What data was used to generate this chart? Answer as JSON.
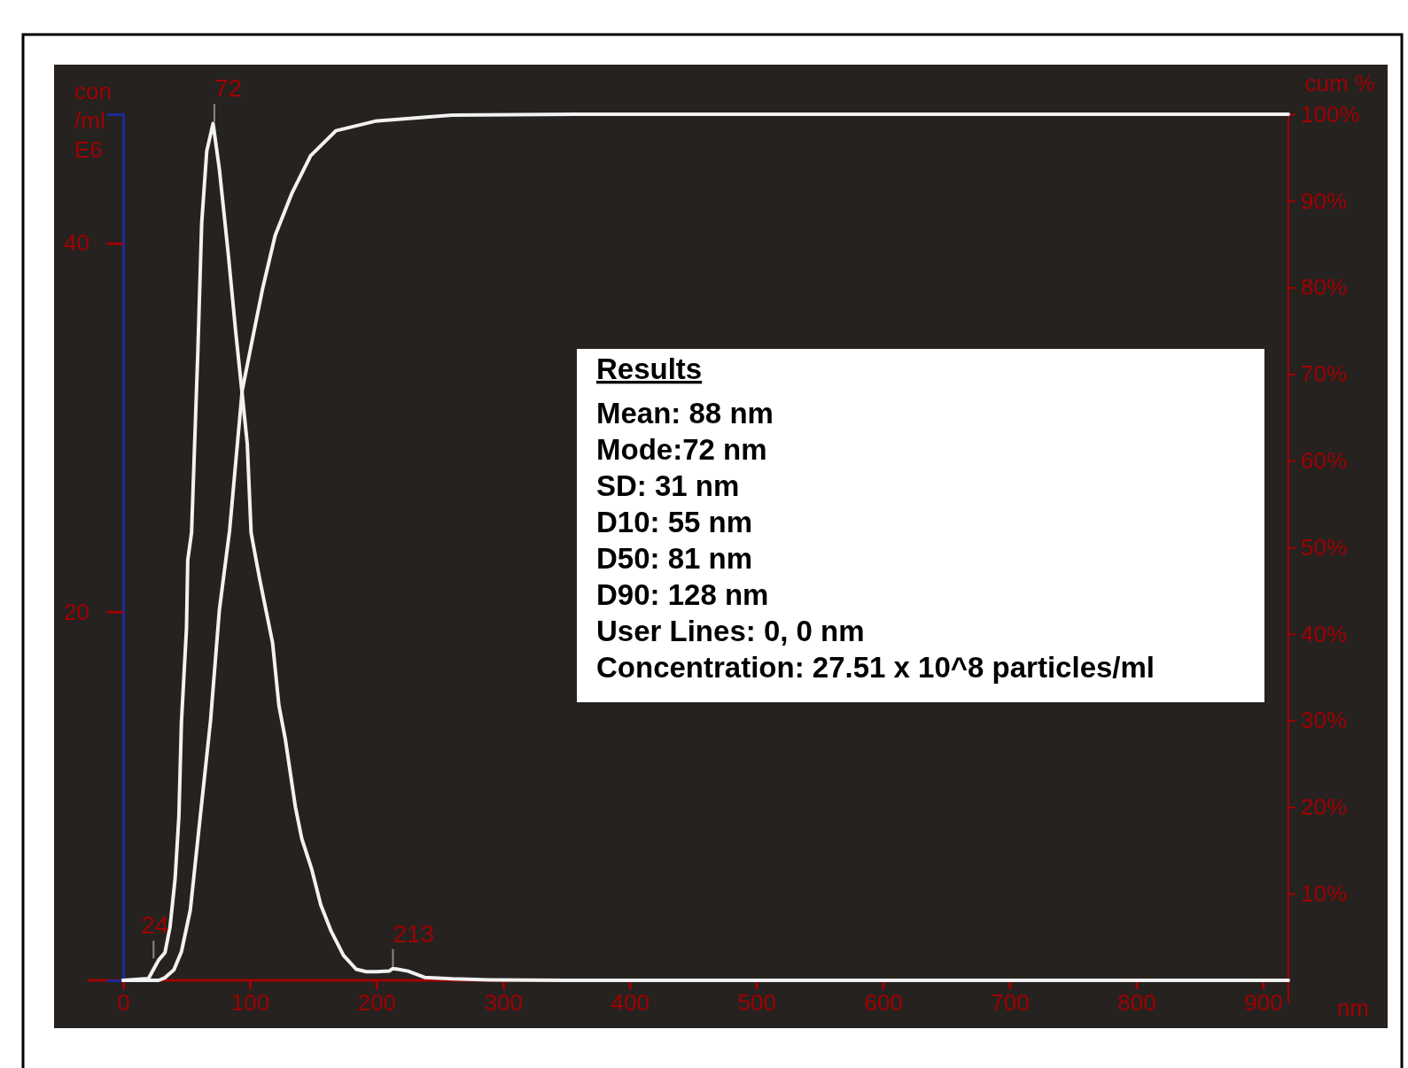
{
  "chart_data": {
    "type": "line",
    "xlabel": "nm",
    "ylabel": "con\n/ml\nE6",
    "y2label": "cum %",
    "xlim": [
      0,
      920
    ],
    "xticks": [
      0,
      100,
      200,
      300,
      400,
      500,
      600,
      700,
      800,
      900
    ],
    "ylim": [
      0,
      47
    ],
    "yticks": [
      20,
      40
    ],
    "y2lim": [
      0,
      100
    ],
    "y2ticks": [
      {
        "value": 10,
        "label": "10%"
      },
      {
        "value": 20,
        "label": "20%"
      },
      {
        "value": 30,
        "label": "30%"
      },
      {
        "value": 40,
        "label": "40%"
      },
      {
        "value": 50,
        "label": "50%"
      },
      {
        "value": 60,
        "label": "60%"
      },
      {
        "value": 70,
        "label": "70%"
      },
      {
        "value": 80,
        "label": "80%"
      },
      {
        "value": 90,
        "label": "90%"
      },
      {
        "value": 100,
        "label": "100%"
      }
    ],
    "grid": false,
    "legend": false,
    "series": [
      {
        "color": "#f2f2f2",
        "x": [
          0,
          20,
          24,
          28,
          33,
          37,
          41,
          44,
          46,
          50,
          51,
          54,
          59,
          62,
          66,
          71,
          76,
          83,
          89,
          94,
          98,
          101,
          105,
          108,
          118,
          123,
          128,
          136,
          141,
          149,
          156,
          164,
          174,
          184,
          192,
          200,
          210,
          213,
          217,
          225,
          238,
          260,
          289,
          350,
          500,
          700,
          920
        ],
        "values": [
          0,
          0.1,
          0.6,
          1.1,
          1.5,
          2.9,
          5.5,
          8.9,
          14,
          19.1,
          22.8,
          24.3,
          34.2,
          41.1,
          45,
          46.5,
          44,
          39.4,
          35.1,
          31.8,
          29.1,
          24.3,
          22.8,
          21.7,
          18.3,
          14.9,
          13.1,
          9.4,
          7.7,
          6,
          4.1,
          2.7,
          1.35,
          0.6,
          0.47,
          0.47,
          0.5,
          0.64,
          0.6,
          0.5,
          0.16,
          0.08,
          0.03,
          0,
          0,
          0,
          0
        ]
      },
      {
        "color": "#f2f2f2",
        "axis": "y2",
        "x": [
          0,
          28,
          33,
          40,
          46,
          53,
          61,
          69,
          76,
          84,
          94,
          102,
          110,
          120,
          133,
          148,
          168,
          199,
          260,
          357,
          500,
          700,
          920
        ],
        "values": [
          0,
          0,
          0.3,
          1.2,
          3.3,
          8.1,
          19.1,
          30,
          42.8,
          51.9,
          68.1,
          74,
          79.8,
          86,
          90.8,
          95.2,
          98.1,
          99.2,
          99.9,
          100,
          100,
          100,
          100
        ]
      }
    ],
    "annotations": [
      {
        "text": "72",
        "x": 72,
        "y": 46.5
      },
      {
        "text": "24",
        "x": 24,
        "y": 1.1
      },
      {
        "text": "213",
        "x": 213,
        "y": 0.64
      },
      "Results",
      "Mean: 88 nm",
      "Mode:72 nm",
      "SD: 31 nm",
      "D10: 55 nm",
      "D50: 81 nm",
      "D90: 128 nm",
      "User Lines: 0, 0 nm",
      "Concentration: 27.51 x 10^8 particles/ml"
    ]
  }
}
